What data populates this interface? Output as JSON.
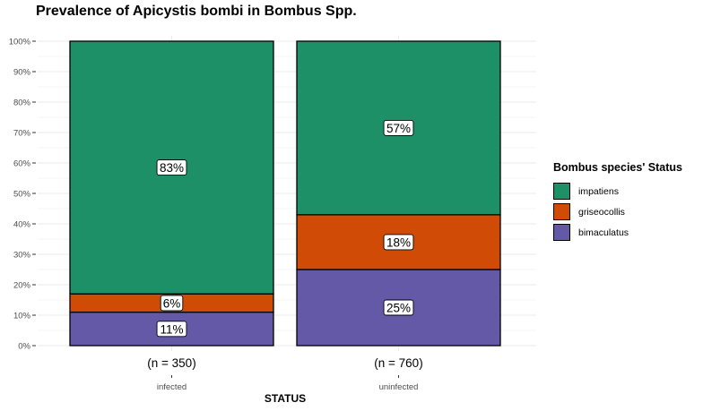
{
  "chart_data": {
    "type": "bar",
    "stacked": true,
    "title": "Prevalence of Apicystis bombi in Bombus Spp.",
    "xlabel": "STATUS",
    "ylabel": "",
    "ylim": [
      0,
      100
    ],
    "y_ticks": [
      "0%",
      "10%",
      "20%",
      "30%",
      "40%",
      "50%",
      "60%",
      "70%",
      "80%",
      "90%",
      "100%"
    ],
    "categories": [
      "infected",
      "uninfected"
    ],
    "category_counts": [
      "(n = 350)",
      "(n = 760)"
    ],
    "series": [
      {
        "name": "bimaculatus",
        "color": "#6459A6",
        "values": [
          11,
          25
        ],
        "labels": [
          "11%",
          "25%"
        ]
      },
      {
        "name": "griseocollis",
        "color": "#CF4B06",
        "values": [
          6,
          18
        ],
        "labels": [
          "6%",
          "18%"
        ]
      },
      {
        "name": "impatiens",
        "color": "#1D9068",
        "values": [
          83,
          57
        ],
        "labels": [
          "83%",
          "57%"
        ]
      }
    ],
    "legend": {
      "title": "Bombus species' Status",
      "position": "right",
      "order": [
        "impatiens",
        "griseocollis",
        "bimaculatus"
      ]
    },
    "grid": true
  }
}
